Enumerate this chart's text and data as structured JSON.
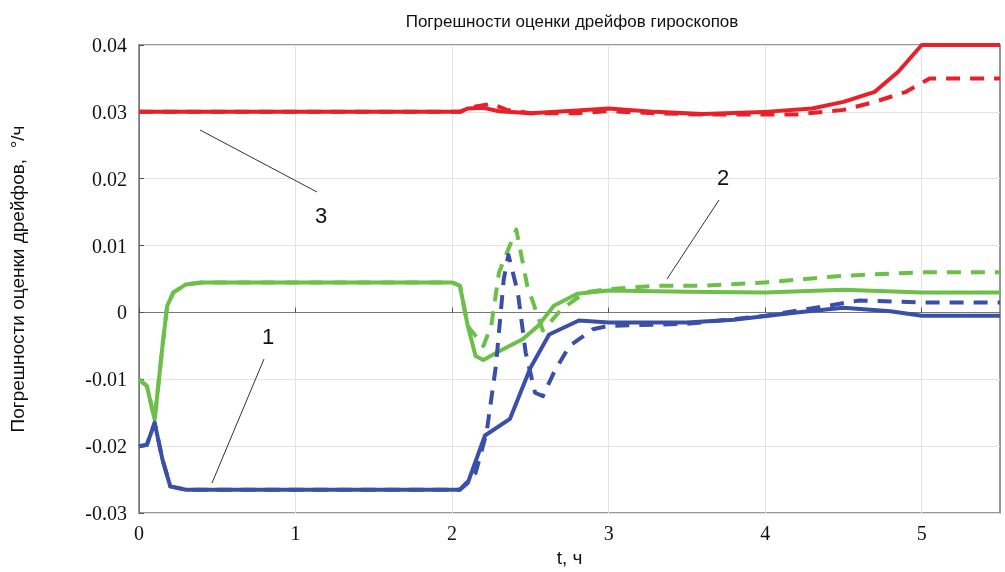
{
  "chart_data": {
    "type": "line",
    "title": "Погрешности оценки дрейфов гироскопов",
    "xlabel": "t, ч",
    "ylabel": "Погрешности оценки дрейфов,  °/ч",
    "xlim": [
      0,
      5.5
    ],
    "xticks": [
      0,
      1,
      2,
      3,
      4,
      5
    ],
    "ylim": [
      -0.03,
      0.04
    ],
    "yticks": [
      -0.03,
      -0.02,
      -0.01,
      0,
      0.01,
      0.02,
      0.03,
      0.04
    ],
    "grid": true,
    "marker": "none",
    "series": [
      {
        "color": "#e8202a",
        "line_style": "solid",
        "x": [
          0,
          1,
          2.05,
          2.1,
          2.2,
          2.3,
          2.5,
          2.8,
          3.0,
          3.3,
          3.6,
          4.0,
          4.3,
          4.5,
          4.7,
          4.85,
          5.0,
          5.5
        ],
        "values": [
          0.03,
          0.03,
          0.03,
          0.0305,
          0.0306,
          0.0301,
          0.0298,
          0.0302,
          0.0305,
          0.03,
          0.0297,
          0.03,
          0.0305,
          0.0315,
          0.033,
          0.036,
          0.04,
          0.04
        ]
      },
      {
        "color": "#e8202a",
        "line_style": "dashed",
        "x": [
          0,
          1,
          2.05,
          2.15,
          2.25,
          2.35,
          2.5,
          2.8,
          3.0,
          3.3,
          3.6,
          4.0,
          4.2,
          4.5,
          4.7,
          4.9,
          5.05,
          5.5
        ],
        "values": [
          0.03,
          0.03,
          0.03,
          0.0308,
          0.0312,
          0.0303,
          0.0298,
          0.0298,
          0.0301,
          0.0298,
          0.0296,
          0.0296,
          0.0296,
          0.0303,
          0.0315,
          0.033,
          0.035,
          0.035
        ]
      },
      {
        "color": "#6cc04a",
        "line_style": "solid",
        "x": [
          0,
          0.05,
          0.1,
          0.15,
          0.18,
          0.22,
          0.3,
          0.4,
          2.0,
          2.05,
          2.1,
          2.15,
          2.2,
          2.3,
          2.45,
          2.55,
          2.65,
          2.8,
          3.0,
          3.5,
          4.0,
          4.5,
          5.0,
          5.5
        ],
        "values": [
          -0.01,
          -0.011,
          -0.016,
          -0.005,
          0.001,
          0.003,
          0.0042,
          0.0045,
          0.0045,
          0.004,
          -0.002,
          -0.0065,
          -0.0071,
          -0.0058,
          -0.004,
          -0.002,
          0.001,
          0.0028,
          0.0033,
          0.0031,
          0.003,
          0.0034,
          0.003,
          0.003
        ]
      },
      {
        "color": "#6cc04a",
        "line_style": "dashed",
        "x": [
          0,
          0.05,
          0.1,
          0.15,
          0.18,
          0.22,
          0.3,
          0.4,
          2.0,
          2.05,
          2.1,
          2.2,
          2.25,
          2.3,
          2.41,
          2.48,
          2.58,
          2.7,
          2.85,
          3.0,
          3.3,
          3.6,
          4.0,
          4.5,
          5.0,
          5.5
        ],
        "values": [
          -0.01,
          -0.011,
          -0.016,
          -0.005,
          0.001,
          0.003,
          0.0042,
          0.0045,
          0.0045,
          0.004,
          -0.002,
          -0.005,
          -0.002,
          0.006,
          0.0124,
          0.004,
          -0.0027,
          0.0005,
          0.003,
          0.0035,
          0.004,
          0.004,
          0.0045,
          0.0055,
          0.006,
          0.006
        ]
      },
      {
        "color": "#3a4fa8",
        "line_style": "solid",
        "x": [
          0,
          0.05,
          0.1,
          0.15,
          0.2,
          0.3,
          2.05,
          2.1,
          2.21,
          2.37,
          2.5,
          2.62,
          2.81,
          3.0,
          3.5,
          3.8,
          4.2,
          4.5,
          4.8,
          5.0,
          5.5
        ],
        "values": [
          -0.02,
          -0.0198,
          -0.0165,
          -0.022,
          -0.026,
          -0.0265,
          -0.0265,
          -0.0255,
          -0.0184,
          -0.0159,
          -0.0083,
          -0.0033,
          -0.0012,
          -0.0015,
          -0.0015,
          -0.0011,
          0,
          0.0007,
          0.0002,
          -0.0005,
          -0.0005
        ]
      },
      {
        "color": "#3a4fa8",
        "line_style": "dashed",
        "x": [
          0,
          0.05,
          0.1,
          0.15,
          0.2,
          0.3,
          2.05,
          2.15,
          2.22,
          2.28,
          2.33,
          2.36,
          2.42,
          2.47,
          2.53,
          2.58,
          2.65,
          2.75,
          2.9,
          3.0,
          3.5,
          4.0,
          4.4,
          4.6,
          5.0,
          5.5
        ],
        "values": [
          -0.02,
          -0.0198,
          -0.0165,
          -0.022,
          -0.026,
          -0.0265,
          -0.0265,
          -0.024,
          -0.018,
          -0.008,
          0.005,
          0.0086,
          0.003,
          -0.006,
          -0.012,
          -0.0125,
          -0.009,
          -0.005,
          -0.0025,
          -0.002,
          -0.0017,
          -0.0005,
          0.001,
          0.0018,
          0.0015,
          0.0015
        ]
      }
    ],
    "annotations": [
      "1",
      "2",
      "3"
    ]
  }
}
